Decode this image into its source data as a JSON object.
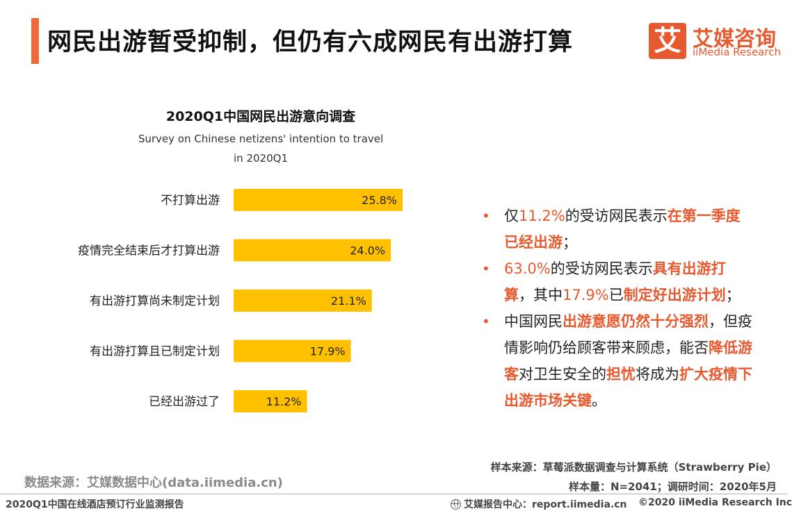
{
  "header": {
    "title": "网民出游暂受抑制，但仍有六成网民有出游打算",
    "logo_glyph": "艾",
    "logo_cn": "艾媒咨询",
    "logo_en": "iiMedia Research"
  },
  "chart_data": {
    "type": "bar",
    "orientation": "horizontal",
    "title": "2020Q1中国网民出游意向调查",
    "subtitle_line1": "Survey on Chinese netizens' intention to travel",
    "subtitle_line2": "in 2020Q1",
    "categories": [
      "不打算出游",
      "疫情完全结束后才打算出游",
      "有出游打算尚未制定计划",
      "有出游打算且已制定计划",
      "已经出游过了"
    ],
    "values": [
      25.8,
      24.0,
      21.1,
      17.9,
      11.2
    ],
    "value_labels": [
      "25.8%",
      "24.0%",
      "21.1%",
      "17.9%",
      "11.2%"
    ],
    "unit": "%",
    "xlim": [
      0,
      30
    ],
    "bar_color": "#ffc000",
    "grid": false
  },
  "bullets": [
    [
      {
        "t": "仅",
        "s": "n"
      },
      {
        "t": "11.2%",
        "s": "hl"
      },
      {
        "t": "的受访网民表示",
        "s": "n"
      },
      {
        "t": "在第一季度已经出游",
        "s": "hb"
      },
      {
        "t": "；",
        "s": "n"
      }
    ],
    [
      {
        "t": "63.0%",
        "s": "hl"
      },
      {
        "t": "的受访网民表示",
        "s": "n"
      },
      {
        "t": "具有出游打算",
        "s": "hb"
      },
      {
        "t": "，其中",
        "s": "n"
      },
      {
        "t": "17.9%",
        "s": "hl"
      },
      {
        "t": "已",
        "s": "n"
      },
      {
        "t": "制定好出游计划",
        "s": "hb"
      },
      {
        "t": "；",
        "s": "n"
      }
    ],
    [
      {
        "t": "中国网民",
        "s": "n"
      },
      {
        "t": "出游意愿仍然十分强烈",
        "s": "hb"
      },
      {
        "t": "，但疫情影响仍给顾客带来顾虑，能否",
        "s": "n"
      },
      {
        "t": "降低游客",
        "s": "hb"
      },
      {
        "t": "对卫生安全的",
        "s": "n"
      },
      {
        "t": "担忧",
        "s": "hb"
      },
      {
        "t": "将成为",
        "s": "n"
      },
      {
        "t": "扩大疫情下出游市场关键",
        "s": "hb"
      },
      {
        "t": "。",
        "s": "n"
      }
    ]
  ],
  "notes": {
    "sample_source": "样本来源：草莓派数据调查与计算系统（Strawberry Pie）",
    "sample_size": "样本量：N=2041；调研时间：2020年5月",
    "data_source": "数据来源：艾媒数据中心(data.iimedia.cn)"
  },
  "footer": {
    "report_name": "2020Q1中国在线酒店预订行业监测报告",
    "report_center": "艾媒报告中心：report.iimedia.cn",
    "copyright": "©2020  iiMedia Research  Inc",
    "accent_color": "#e7592f"
  }
}
